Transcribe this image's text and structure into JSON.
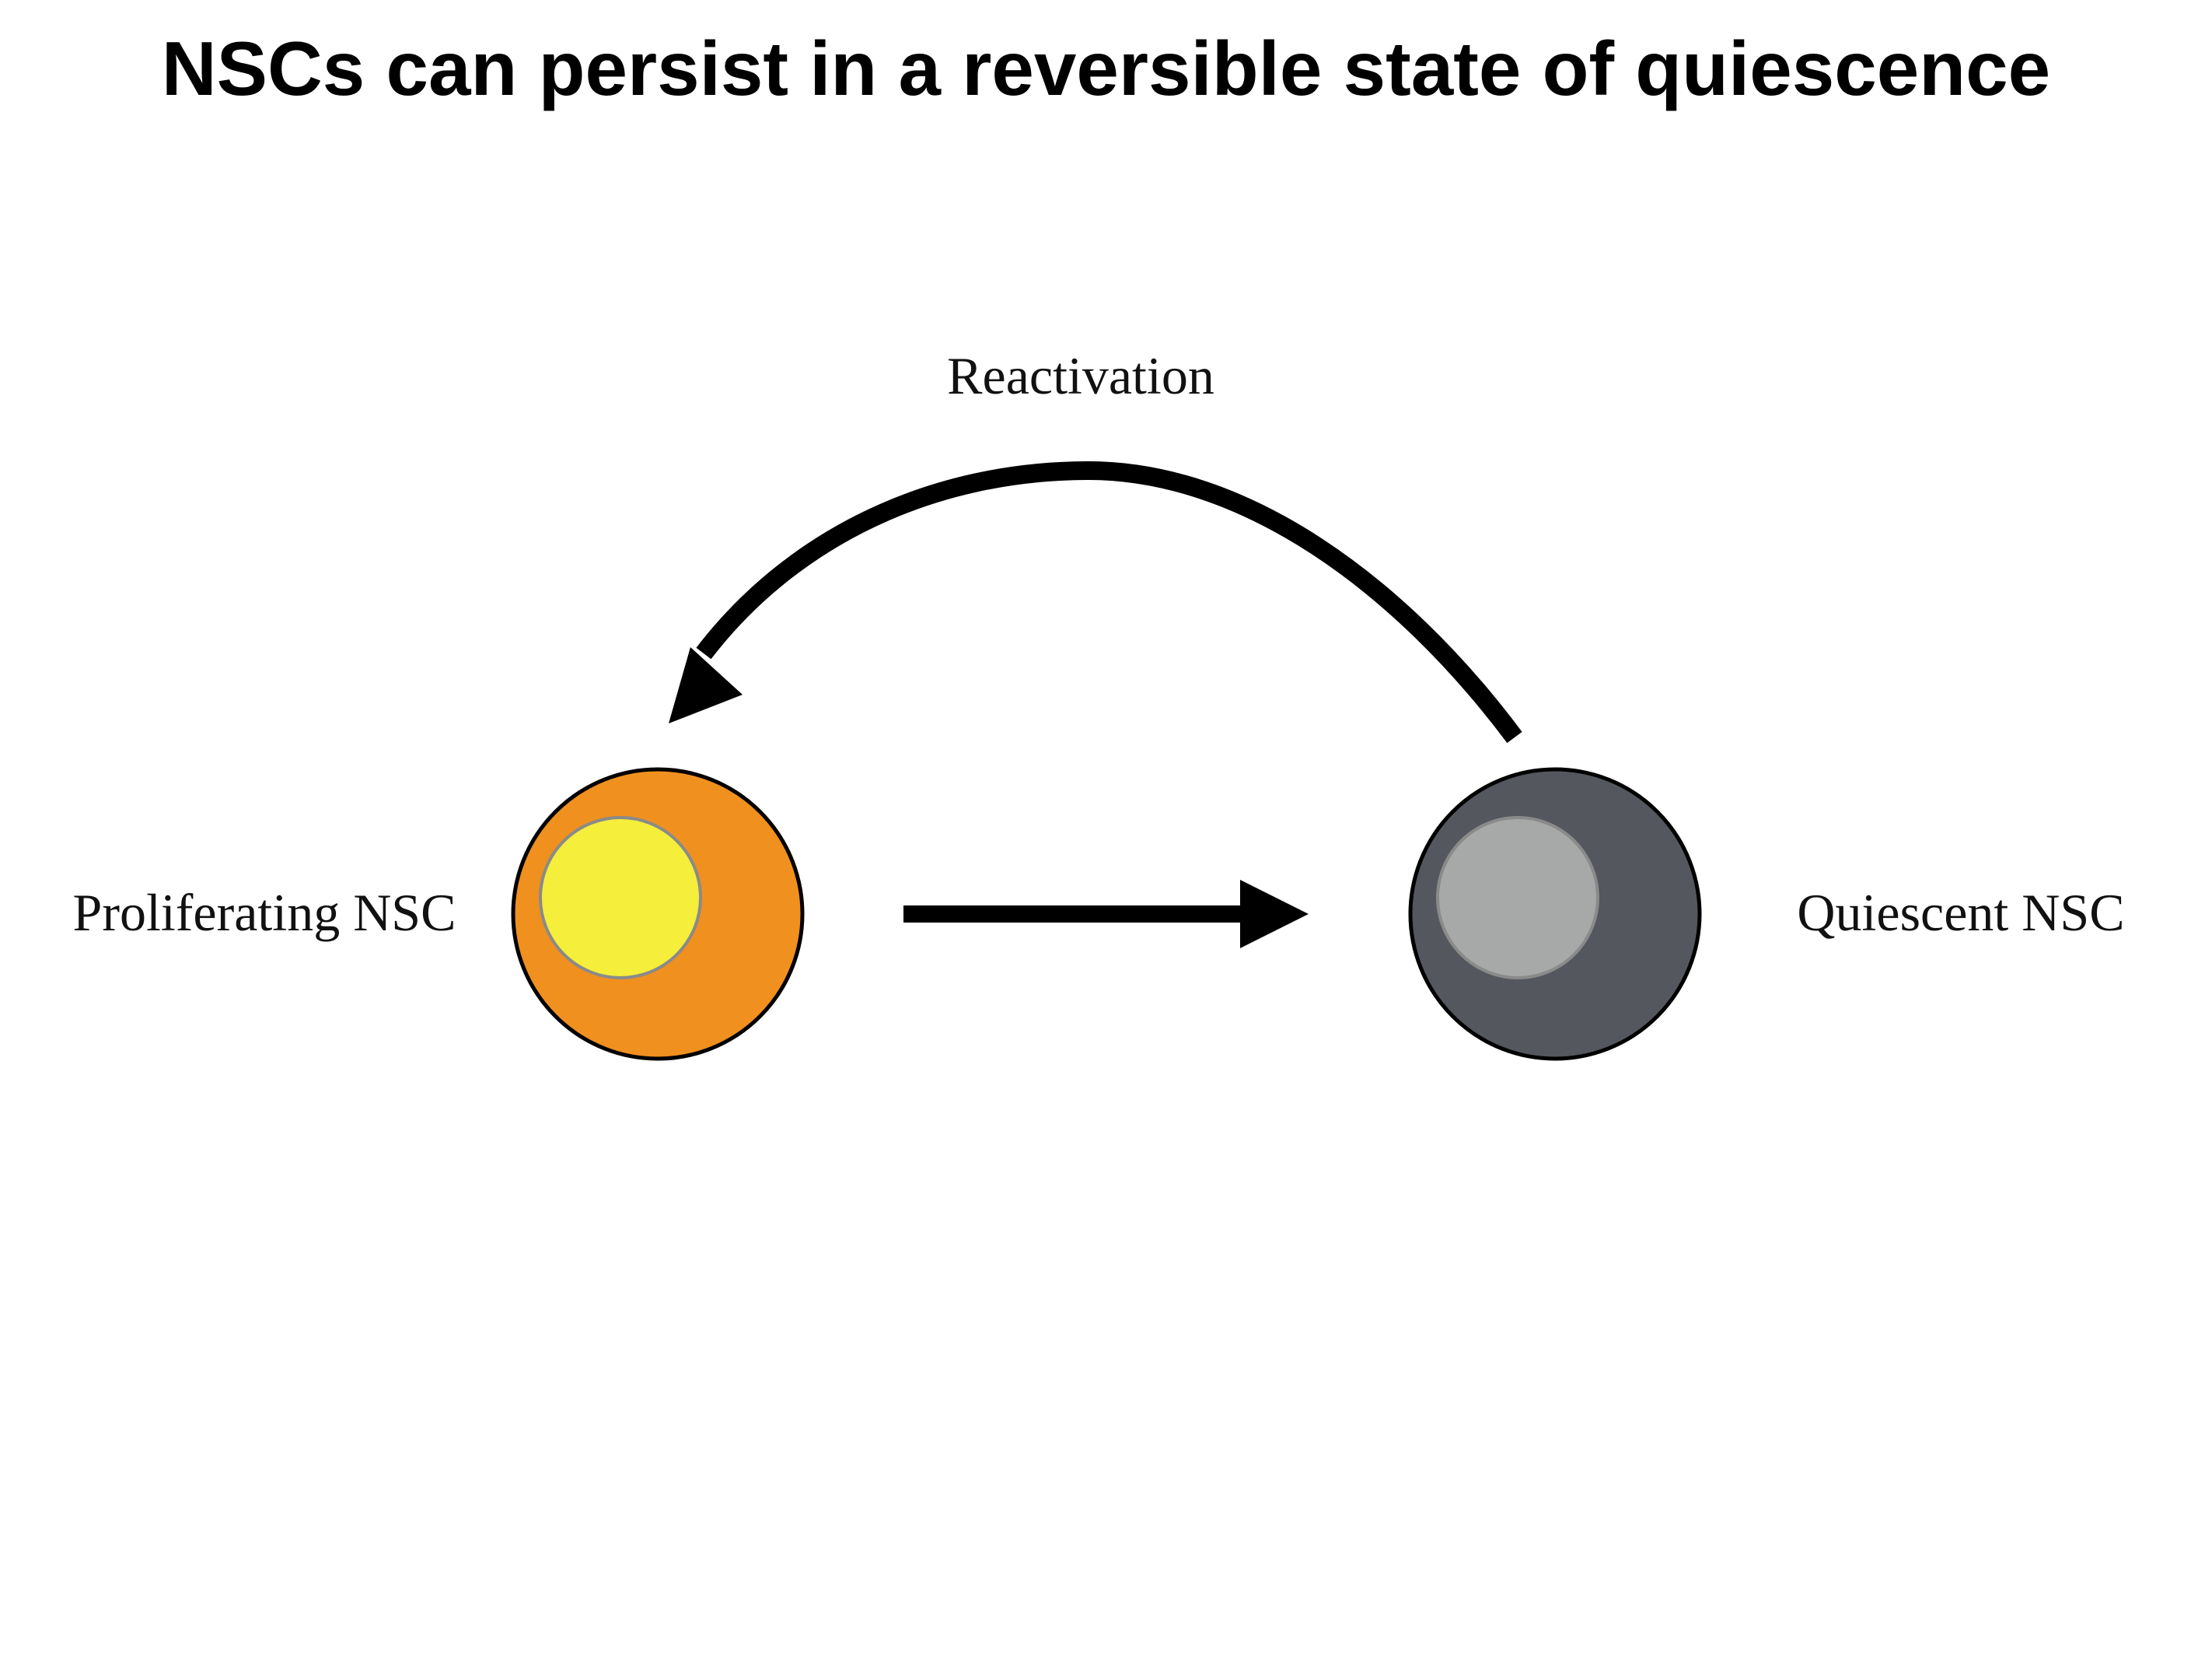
{
  "title": "NSCs can persist in a reversible state of quiescence",
  "nodes": {
    "proliferating": {
      "label": "Proliferating NSC",
      "cell_color": "#F0901E",
      "nucleus_color": "#F5EE3A"
    },
    "quiescent": {
      "label": "Quiescent NSC",
      "cell_color": "#54575D",
      "nucleus_color": "#A7A9A8"
    }
  },
  "edges": {
    "to_quiescence": {
      "label": ""
    },
    "reactivation": {
      "label": "Reactivation"
    }
  },
  "colors": {
    "outline": "#000000",
    "nucleus_outline": "#8A8A8A",
    "arrow": "#000000"
  }
}
